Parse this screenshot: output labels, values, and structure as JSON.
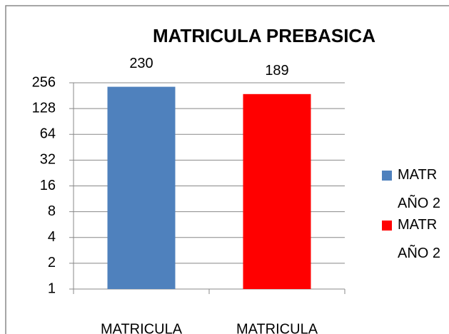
{
  "chart_data": {
    "type": "bar",
    "title": "MATRICULA PREBASICA",
    "categories": [
      "MATRICULA",
      "MATRICULA"
    ],
    "series": [
      {
        "name": "MATR AÑO 2",
        "color": "#4f81bd",
        "values": [
          230,
          null
        ]
      },
      {
        "name": "MATR AÑO 2",
        "color": "#ff0000",
        "values": [
          null,
          189
        ]
      }
    ],
    "ylim": [
      1,
      256
    ],
    "yticks": [
      1,
      2,
      4,
      8,
      16,
      32,
      64,
      128,
      256
    ],
    "log_scale": true,
    "grid": true,
    "legend": "right"
  }
}
